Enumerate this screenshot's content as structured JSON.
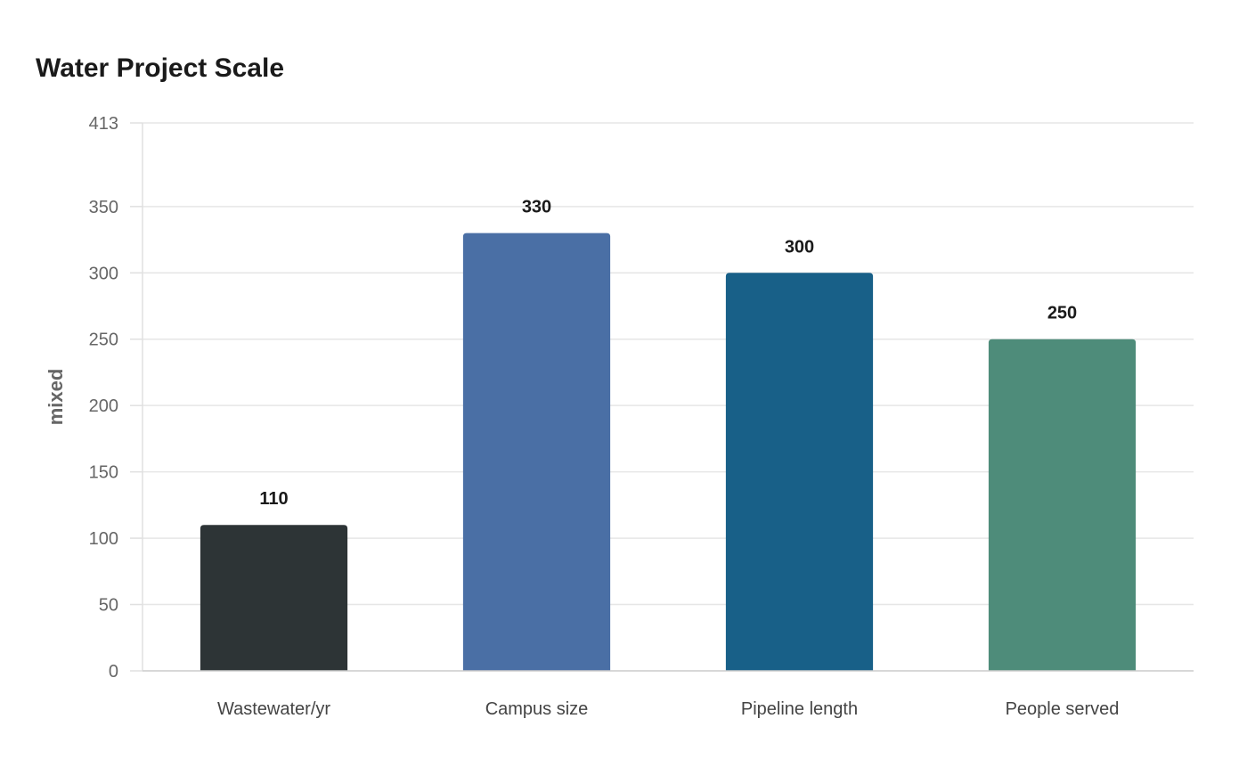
{
  "chart_data": {
    "type": "bar",
    "title": "Water Project Scale",
    "xlabel": "",
    "ylabel": "mixed",
    "categories": [
      "Wastewater/yr",
      "Campus size",
      "Pipeline length",
      "People served"
    ],
    "values": [
      110,
      330,
      300,
      250
    ],
    "data_labels": [
      "110",
      "330",
      "300",
      "250"
    ],
    "colors": [
      "#2d3436",
      "#4a6fa5",
      "#186088",
      "#4e8c7a"
    ],
    "ylim": [
      0,
      413
    ],
    "yticks": [
      0,
      50,
      100,
      150,
      200,
      250,
      300,
      350,
      413
    ],
    "grid": true,
    "legend": "none"
  }
}
